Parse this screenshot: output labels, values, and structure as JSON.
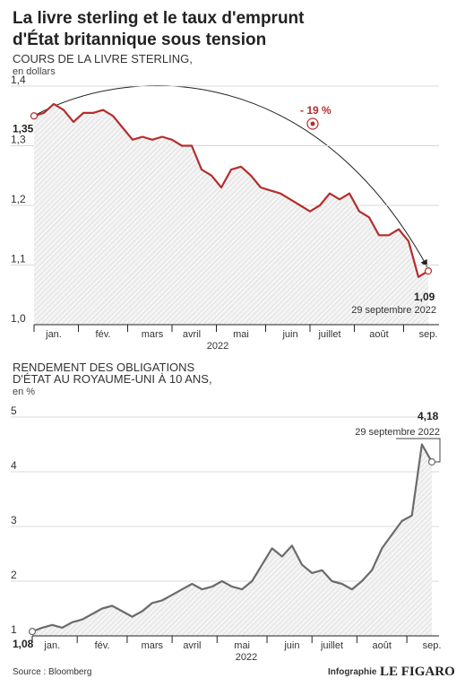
{
  "header": {
    "title": [
      "La livre sterling et le taux d'emprunt",
      "d'État britannique sous tension"
    ]
  },
  "chart_data": [
    {
      "type": "line",
      "title": [
        "COURS DE LA LIVRE STERLING,"
      ],
      "unit": "en dollars",
      "categories": [
        null,
        null,
        "jan.",
        null,
        null,
        null,
        null,
        "fév.",
        null,
        null,
        null,
        null,
        "mars",
        null,
        null,
        null,
        "avril",
        null,
        null,
        null,
        null,
        "mai",
        null,
        null,
        null,
        null,
        "juin",
        null,
        null,
        null,
        "juillet",
        null,
        null,
        null,
        null,
        "août",
        null,
        null,
        null,
        null,
        "sep."
      ],
      "x_label": "2022",
      "series": [
        {
          "name": "Livre sterling",
          "color": "#b32e2c",
          "values": [
            1.35,
            1.355,
            1.37,
            1.36,
            1.34,
            1.355,
            1.355,
            1.36,
            1.35,
            1.33,
            1.31,
            1.315,
            1.31,
            1.315,
            1.31,
            1.3,
            1.3,
            1.26,
            1.25,
            1.23,
            1.26,
            1.265,
            1.25,
            1.23,
            1.225,
            1.22,
            1.21,
            1.2,
            1.19,
            1.2,
            1.22,
            1.21,
            1.22,
            1.19,
            1.18,
            1.15,
            1.15,
            1.16,
            1.14,
            1.08,
            1.09
          ],
          "value_labels": [
            "1,35",
            null,
            null,
            null,
            null,
            null,
            null,
            null,
            null,
            null,
            null,
            null,
            null,
            null,
            null,
            null,
            null,
            null,
            null,
            null,
            null,
            null,
            null,
            null,
            null,
            null,
            null,
            null,
            null,
            null,
            null,
            null,
            null,
            null,
            null,
            null,
            null,
            null,
            null,
            null,
            "1,09"
          ]
        }
      ],
      "ylim": [
        1.0,
        1.4
      ],
      "yticks": [
        {
          "value": 1.0,
          "label": "1,0"
        },
        {
          "value": 1.1,
          "label": "1,1"
        },
        {
          "value": 1.2,
          "label": "1,2"
        },
        {
          "value": 1.3,
          "label": "1,3"
        },
        {
          "value": 1.4,
          "label": "1,4"
        }
      ],
      "grid": true,
      "annotations": {
        "change": "- 19 %",
        "date": "29 septembre 2022"
      }
    },
    {
      "type": "line",
      "title": [
        "RENDEMENT DES OBLIGATIONS",
        "D'ÉTAT AU ROYAUME-UNI À 10 ANS,"
      ],
      "unit": "en %",
      "categories": [
        null,
        null,
        "jan.",
        null,
        null,
        null,
        null,
        "fév.",
        null,
        null,
        null,
        null,
        "mars",
        null,
        null,
        null,
        "avril",
        null,
        null,
        null,
        null,
        "mai",
        null,
        null,
        null,
        null,
        "juin",
        null,
        null,
        null,
        "juillet",
        null,
        null,
        null,
        null,
        "août",
        null,
        null,
        null,
        null,
        "sep."
      ],
      "x_label": "2022",
      "series": [
        {
          "name": "Rendement à 10 ans",
          "color": "#6b6b6b",
          "values": [
            1.08,
            1.15,
            1.2,
            1.15,
            1.25,
            1.3,
            1.4,
            1.5,
            1.55,
            1.45,
            1.35,
            1.45,
            1.6,
            1.65,
            1.75,
            1.85,
            1.95,
            1.85,
            1.9,
            2.0,
            1.9,
            1.85,
            2.0,
            2.3,
            2.6,
            2.45,
            2.65,
            2.3,
            2.15,
            2.2,
            2.0,
            1.95,
            1.85,
            2.0,
            2.2,
            2.6,
            2.85,
            3.1,
            3.2,
            4.5,
            4.18
          ],
          "value_labels": [
            "1,08",
            null,
            null,
            null,
            null,
            null,
            null,
            null,
            null,
            null,
            null,
            null,
            null,
            null,
            null,
            null,
            null,
            null,
            null,
            null,
            null,
            null,
            null,
            null,
            null,
            null,
            null,
            null,
            null,
            null,
            null,
            null,
            null,
            null,
            null,
            null,
            null,
            null,
            null,
            null,
            "4,18"
          ]
        }
      ],
      "ylim": [
        1,
        5
      ],
      "yticks": [
        1,
        2,
        3,
        4,
        5
      ],
      "grid": true,
      "annotations": {
        "date": "29 septembre 2022"
      }
    }
  ],
  "footer": {
    "source": "Source : Bloomberg",
    "credit": "Infographie",
    "brand": "LE FIGARO"
  }
}
